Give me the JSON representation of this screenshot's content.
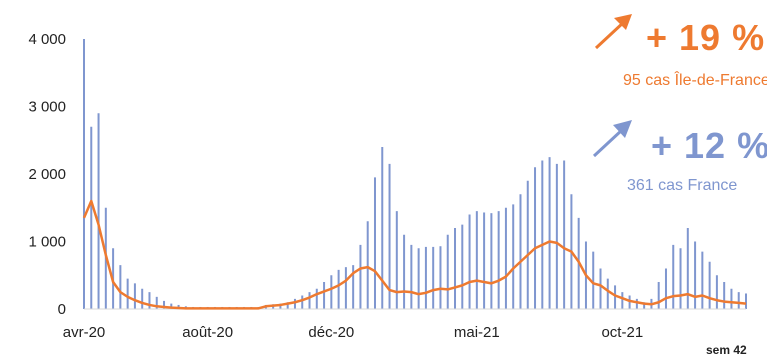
{
  "chart_data": {
    "type": "bar",
    "x_tick_labels": [
      "avr-20",
      "août-20",
      "déc-20",
      "mai-21",
      "oct-21"
    ],
    "x_tick_indices": [
      0,
      17,
      34,
      54,
      74
    ],
    "week_label": "sem 42",
    "y_tick_labels": [
      "0",
      "1 000",
      "2 000",
      "3 000",
      "4 000"
    ],
    "ylim": [
      0,
      4000
    ],
    "y_ticks": [
      0,
      1000,
      2000,
      3000,
      4000
    ],
    "series": [
      {
        "kind": "bar",
        "color": "#7f96cf",
        "values": [
          4000,
          2700,
          2900,
          1500,
          900,
          650,
          450,
          380,
          300,
          250,
          180,
          120,
          80,
          60,
          40,
          30,
          30,
          30,
          30,
          30,
          30,
          30,
          30,
          30,
          30,
          60,
          70,
          80,
          100,
          150,
          200,
          250,
          300,
          400,
          500,
          580,
          620,
          650,
          950,
          1300,
          1950,
          2400,
          2150,
          1450,
          1100,
          950,
          900,
          920,
          920,
          930,
          1100,
          1200,
          1250,
          1400,
          1450,
          1430,
          1420,
          1450,
          1500,
          1550,
          1700,
          1900,
          2100,
          2200,
          2250,
          2150,
          2200,
          1700,
          1350,
          1000,
          850,
          600,
          450,
          350,
          250,
          200,
          150,
          100,
          150,
          400,
          600,
          950,
          900,
          1200,
          1000,
          850,
          700,
          500,
          400,
          300,
          250,
          230
        ]
      },
      {
        "kind": "line",
        "color": "#ee7a30",
        "values": [
          1350,
          1600,
          1250,
          800,
          400,
          250,
          180,
          130,
          90,
          60,
          40,
          30,
          20,
          15,
          10,
          10,
          10,
          10,
          10,
          10,
          10,
          10,
          10,
          10,
          10,
          40,
          50,
          60,
          80,
          100,
          130,
          170,
          220,
          260,
          300,
          350,
          420,
          530,
          600,
          620,
          560,
          420,
          280,
          250,
          260,
          250,
          220,
          240,
          280,
          300,
          290,
          320,
          350,
          400,
          420,
          400,
          380,
          420,
          480,
          600,
          700,
          800,
          900,
          950,
          1000,
          980,
          900,
          850,
          700,
          500,
          380,
          350,
          270,
          200,
          160,
          120,
          100,
          80,
          70,
          100,
          160,
          190,
          200,
          220,
          180,
          200,
          160,
          130,
          110,
          100,
          90,
          80
        ]
      }
    ]
  },
  "callouts": {
    "idf": {
      "arrow_icon": "arrow-up-right-icon",
      "pct": "+ 19 %",
      "sub": "95 cas Île-de-France",
      "color": "#ee7a30"
    },
    "fr": {
      "arrow_icon": "arrow-up-right-icon",
      "pct": "+ 12 %",
      "sub": "361 cas France",
      "color": "#7f96cf"
    }
  }
}
